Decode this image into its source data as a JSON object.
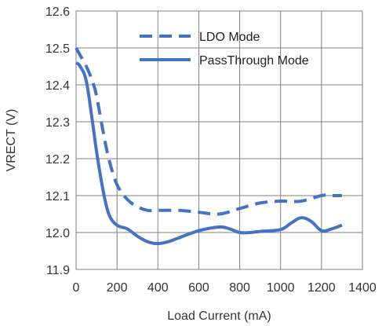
{
  "chart_data": {
    "type": "line",
    "title": "",
    "xlabel": "Load Current (mA)",
    "ylabel": "VRECT (V)",
    "xlim": [
      0,
      1400
    ],
    "ylim": [
      11.9,
      12.6
    ],
    "x_ticks": [
      "0",
      "200",
      "400",
      "600",
      "800",
      "1000",
      "1200",
      "1400"
    ],
    "y_ticks": [
      "11.9",
      "12.0",
      "12.1",
      "12.2",
      "12.3",
      "12.4",
      "12.5",
      "12.6"
    ],
    "x_tick_values": [
      0,
      200,
      400,
      600,
      800,
      1000,
      1200,
      1400
    ],
    "y_tick_values": [
      11.9,
      12.0,
      12.1,
      12.2,
      12.3,
      12.4,
      12.5,
      12.6
    ],
    "grid": true,
    "legend_position": "top-right",
    "series": [
      {
        "name": "LDO Mode",
        "color": "#4472c4",
        "style": "dashed",
        "x": [
          0,
          20,
          50,
          80,
          100,
          130,
          160,
          200,
          250,
          300,
          350,
          400,
          500,
          600,
          700,
          800,
          900,
          1000,
          1100,
          1200,
          1250,
          1300
        ],
        "y": [
          12.5,
          12.48,
          12.45,
          12.41,
          12.37,
          12.28,
          12.2,
          12.13,
          12.09,
          12.07,
          12.06,
          12.06,
          12.06,
          12.055,
          12.05,
          12.065,
          12.08,
          12.085,
          12.085,
          12.1,
          12.1,
          12.1
        ]
      },
      {
        "name": "PassThrough Mode",
        "color": "#4472c4",
        "style": "solid",
        "x": [
          0,
          20,
          50,
          80,
          100,
          130,
          160,
          200,
          250,
          300,
          350,
          400,
          450,
          500,
          600,
          700,
          750,
          800,
          850,
          900,
          1000,
          1050,
          1100,
          1150,
          1200,
          1250,
          1300
        ],
        "y": [
          12.46,
          12.45,
          12.41,
          12.3,
          12.22,
          12.12,
          12.05,
          12.02,
          12.01,
          11.99,
          11.975,
          11.97,
          11.975,
          11.985,
          12.005,
          12.015,
          12.01,
          12.0,
          12.0,
          12.003,
          12.008,
          12.025,
          12.04,
          12.03,
          12.005,
          12.01,
          12.02
        ]
      }
    ]
  }
}
